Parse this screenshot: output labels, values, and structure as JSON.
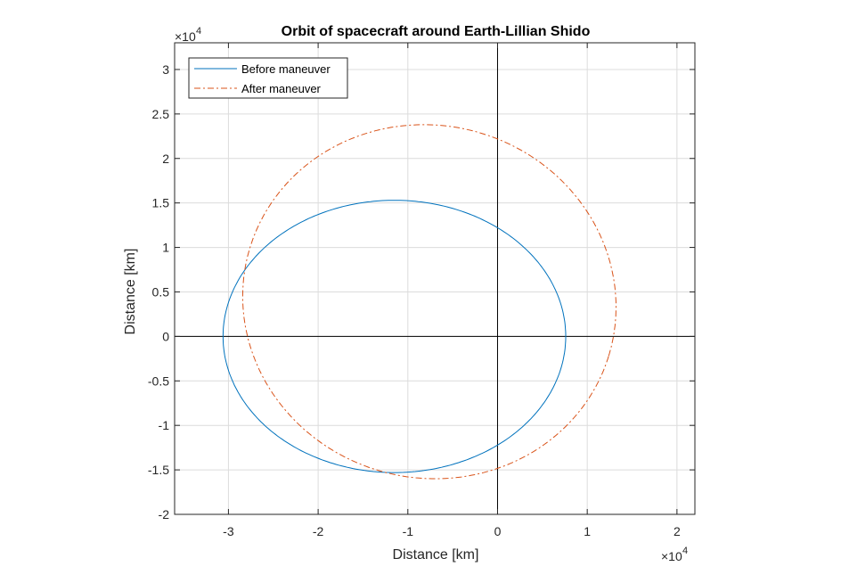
{
  "chart_data": {
    "type": "line",
    "title": "Orbit of spacecraft around Earth-Lillian Shido",
    "xlabel": "Distance [km]",
    "ylabel": "Distance [km]",
    "x_exponent_label": "×10",
    "x_exponent_power": "4",
    "y_exponent_label": "×10",
    "y_exponent_power": "4",
    "xlim": [
      -3.6,
      2.2
    ],
    "ylim": [
      -2,
      3.3
    ],
    "x_ticks": [
      -3,
      -2,
      -1,
      0,
      1,
      2
    ],
    "x_tick_labels": [
      "-3",
      "-2",
      "-1",
      "0",
      "1",
      "2"
    ],
    "y_ticks": [
      -2,
      -1.5,
      -1,
      -0.5,
      0,
      0.5,
      1,
      1.5,
      2,
      2.5,
      3
    ],
    "y_tick_labels": [
      "-2",
      "-1.5",
      "-1",
      "-0.5",
      "0",
      "0.5",
      "1",
      "1.5",
      "2",
      "2.5",
      "3"
    ],
    "grid": true,
    "legend_position": "top-left",
    "series": [
      {
        "name": "Before maneuver",
        "color": "#0072BD",
        "style": "solid",
        "center": [
          -1.15,
          0
        ],
        "semi_axes": [
          1.91,
          1.53
        ],
        "rotation_deg": 0
      },
      {
        "name": "After maneuver",
        "color": "#D95319",
        "style": "dash-dot",
        "center": [
          -0.76,
          0.39
        ],
        "semi_axes": [
          2.09,
          1.98
        ],
        "rotation_deg": -17
      }
    ]
  }
}
